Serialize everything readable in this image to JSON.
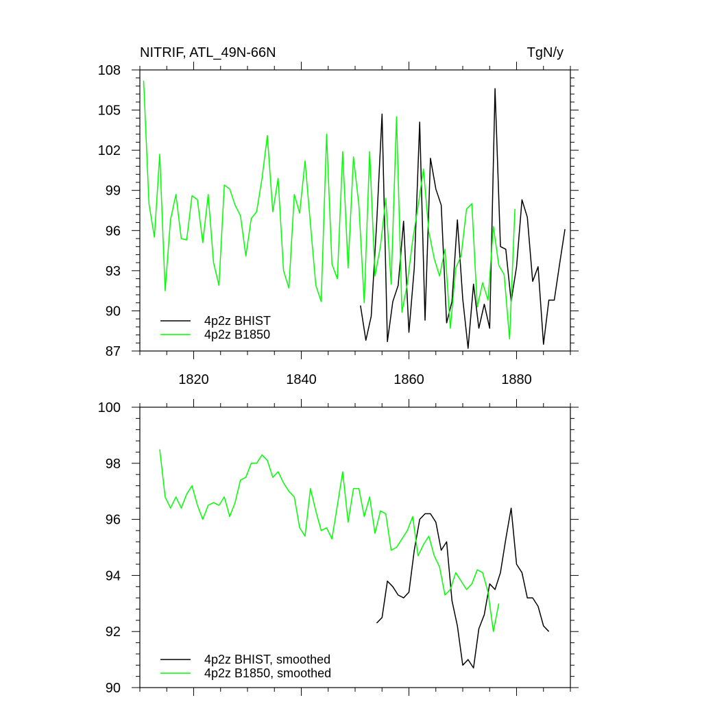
{
  "title_left": "NITRIF, ATL_49N-66N",
  "title_right": "TgN/y",
  "colors": {
    "bhist": "#000000",
    "b1850": "#00ff00",
    "frame": "#000000"
  },
  "chart_data": [
    {
      "type": "line",
      "panel": "top",
      "title": "NITRIF, ATL_49N-66N",
      "units": "TgN/y",
      "xlim": [
        1810,
        1890
      ],
      "ylim": [
        87,
        108
      ],
      "xticks": [
        1820,
        1840,
        1860,
        1880
      ],
      "xtick_labels": [
        "1820",
        "1840",
        "1860",
        "1880"
      ],
      "yticks": [
        87,
        90,
        93,
        96,
        99,
        102,
        105,
        108
      ],
      "ytick_labels": [
        "87",
        "90",
        "93",
        "96",
        "99",
        "102",
        "105",
        "108"
      ],
      "legend_location": "lower-left",
      "grid": false,
      "series": [
        {
          "name": "4p2z BHIST",
          "color": "#000000",
          "x": [
            1851,
            1852,
            1853,
            1854,
            1855,
            1856,
            1857,
            1858,
            1859,
            1860,
            1861,
            1862,
            1863,
            1864,
            1865,
            1866,
            1867,
            1868,
            1869,
            1870,
            1871,
            1872,
            1873,
            1874,
            1875,
            1876,
            1877,
            1878,
            1879,
            1880,
            1881,
            1882,
            1883,
            1884,
            1885,
            1886,
            1887,
            1888,
            1889
          ],
          "y": [
            90.4,
            87.8,
            89.6,
            96.5,
            104.7,
            87.7,
            90.7,
            91.9,
            96.7,
            88.4,
            93.2,
            104.1,
            89.3,
            101.4,
            99.1,
            97.9,
            89.1,
            90.7,
            96.8,
            90.9,
            87.2,
            92.0,
            88.7,
            90.5,
            88.7,
            106.6,
            94.8,
            94.6,
            90.7,
            93.3,
            98.3,
            97.0,
            92.2,
            93.3,
            87.5,
            90.8,
            90.8,
            93.5,
            96.1
          ]
        },
        {
          "name": "4p2z B1850",
          "color": "#00ff00",
          "x": [
            1810.7,
            1811.7,
            1812.7,
            1813.7,
            1814.7,
            1815.7,
            1816.7,
            1817.7,
            1818.7,
            1819.7,
            1820.7,
            1821.7,
            1822.7,
            1823.7,
            1824.7,
            1825.7,
            1826.7,
            1827.7,
            1828.7,
            1829.7,
            1830.7,
            1831.7,
            1832.7,
            1833.7,
            1834.7,
            1835.7,
            1836.7,
            1837.7,
            1838.7,
            1839.7,
            1840.7,
            1841.7,
            1842.7,
            1843.7,
            1844.7,
            1845.7,
            1846.7,
            1847.7,
            1848.7,
            1849.7,
            1850.7,
            1851.7,
            1852.7,
            1853.7,
            1854.7,
            1855.7,
            1856.7,
            1857.7,
            1858.7,
            1859.7,
            1860.7,
            1861.7,
            1862.7,
            1863.7,
            1864.7,
            1865.7,
            1866.7,
            1867.7,
            1868.7,
            1869.7,
            1870.7,
            1871.7,
            1872.7,
            1873.7,
            1874.7,
            1875.7,
            1876.7,
            1877.7,
            1878.7,
            1879.7
          ],
          "y": [
            107.2,
            98.0,
            95.5,
            101.7,
            91.5,
            96.8,
            98.7,
            95.4,
            95.3,
            98.6,
            98.3,
            95.1,
            98.7,
            93.6,
            91.9,
            99.4,
            99.1,
            97.9,
            97.1,
            94.1,
            96.9,
            97.4,
            99.9,
            103.1,
            97.4,
            99.9,
            93.0,
            91.7,
            98.7,
            97.3,
            101.2,
            96.5,
            91.9,
            90.7,
            103.2,
            93.5,
            92.4,
            101.9,
            93.2,
            101.5,
            97.9,
            90.6,
            101.9,
            92.6,
            94.8,
            98.4,
            92.0,
            104.5,
            89.9,
            92.0,
            95.3,
            97.8,
            100.6,
            95.9,
            93.9,
            92.6,
            94.6,
            88.7,
            93.2,
            94.1,
            97.6,
            98.0,
            90.3,
            92.1,
            90.8,
            96.3,
            93.4,
            92.7,
            87.9,
            97.6
          ]
        }
      ]
    },
    {
      "type": "line",
      "panel": "bottom",
      "xlim": [
        1810,
        1890
      ],
      "ylim": [
        90,
        100
      ],
      "xticks": [
        1820,
        1840,
        1860,
        1880
      ],
      "yticks": [
        90,
        92,
        94,
        96,
        98,
        100
      ],
      "ytick_labels": [
        "90",
        "92",
        "94",
        "96",
        "98",
        "100"
      ],
      "legend_location": "lower-left",
      "grid": false,
      "series": [
        {
          "name": "4p2z BHIST, smoothed",
          "color": "#000000",
          "x": [
            1854,
            1855,
            1856,
            1857,
            1858,
            1859,
            1860,
            1861,
            1862,
            1863,
            1864,
            1865,
            1866,
            1867,
            1868,
            1869,
            1870,
            1871,
            1872,
            1873,
            1874,
            1875,
            1876,
            1877,
            1878,
            1879,
            1880,
            1881,
            1882,
            1883,
            1884,
            1885,
            1886
          ],
          "y": [
            92.3,
            92.5,
            93.8,
            93.6,
            93.3,
            93.2,
            93.4,
            94.9,
            96.0,
            96.2,
            96.2,
            95.9,
            94.9,
            95.2,
            93.1,
            92.2,
            90.8,
            91.0,
            90.7,
            92.1,
            92.6,
            93.7,
            93.5,
            94.1,
            95.3,
            96.4,
            94.4,
            94.1,
            93.2,
            93.2,
            92.9,
            92.2,
            92.0
          ]
        },
        {
          "name": "4p2z B1850, smoothed",
          "color": "#00ff00",
          "x": [
            1813.7,
            1814.7,
            1815.7,
            1816.7,
            1817.7,
            1818.7,
            1819.7,
            1820.7,
            1821.7,
            1822.7,
            1823.7,
            1824.7,
            1825.7,
            1826.7,
            1827.7,
            1828.7,
            1829.7,
            1830.7,
            1831.7,
            1832.7,
            1833.7,
            1834.7,
            1835.7,
            1836.7,
            1837.7,
            1838.7,
            1839.7,
            1840.7,
            1841.7,
            1842.7,
            1843.7,
            1844.7,
            1845.7,
            1846.7,
            1847.7,
            1848.7,
            1849.7,
            1850.7,
            1851.7,
            1852.7,
            1853.7,
            1854.7,
            1855.7,
            1856.7,
            1857.7,
            1858.7,
            1859.7,
            1860.7,
            1861.7,
            1862.7,
            1863.7,
            1864.7,
            1865.7,
            1866.7,
            1867.7,
            1868.7,
            1869.7,
            1870.7,
            1871.7,
            1872.7,
            1873.7,
            1874.7,
            1875.7,
            1876.7
          ],
          "y": [
            98.5,
            96.8,
            96.4,
            96.8,
            96.4,
            96.9,
            97.2,
            96.5,
            96.0,
            96.5,
            96.6,
            96.5,
            96.8,
            96.1,
            96.6,
            97.4,
            97.5,
            98.0,
            98.0,
            98.3,
            98.1,
            97.5,
            97.7,
            97.3,
            97.0,
            96.8,
            95.7,
            95.4,
            97.1,
            96.3,
            95.6,
            95.7,
            95.3,
            96.5,
            97.7,
            95.9,
            97.1,
            97.1,
            96.1,
            96.8,
            95.5,
            96.3,
            96.2,
            94.9,
            95.0,
            95.3,
            95.6,
            96.1,
            94.7,
            95.1,
            95.4,
            94.7,
            94.3,
            93.3,
            93.5,
            94.1,
            93.8,
            93.5,
            93.7,
            94.2,
            94.1,
            93.4,
            92.0,
            93.0
          ]
        }
      ]
    }
  ]
}
